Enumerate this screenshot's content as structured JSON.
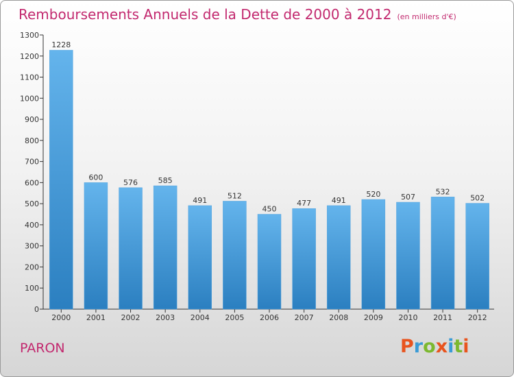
{
  "header": {
    "title": "Remboursements Annuels de la Dette de 2000 à 2012",
    "subtitle": "(en milliers d'€)"
  },
  "place": "PARON",
  "brand": {
    "text": "Proxiti",
    "letters": [
      {
        "ch": "P",
        "color": "#e8541e"
      },
      {
        "ch": "r",
        "color": "#3a9bd6"
      },
      {
        "ch": "o",
        "color": "#7cb82f"
      },
      {
        "ch": "x",
        "color": "#e8541e"
      },
      {
        "ch": "i",
        "color": "#3a9bd6"
      },
      {
        "ch": "t",
        "color": "#7cb82f"
      },
      {
        "ch": "i",
        "color": "#e8541e"
      }
    ]
  },
  "colors": {
    "bar_top": "#64b4ec",
    "bar_bottom": "#2b7fc0",
    "title": "#c2286e",
    "axis": "#333333"
  },
  "chart_data": {
    "type": "bar",
    "title": "Remboursements Annuels de la Dette de 2000 à 2012",
    "subtitle": "(en milliers d'€)",
    "categories": [
      "2000",
      "2001",
      "2002",
      "2003",
      "2004",
      "2005",
      "2006",
      "2007",
      "2008",
      "2009",
      "2010",
      "2011",
      "2012"
    ],
    "values": [
      1228,
      600,
      576,
      585,
      491,
      512,
      450,
      477,
      491,
      520,
      507,
      532,
      502
    ],
    "ylim": [
      0,
      1300
    ],
    "yticks": [
      0,
      100,
      200,
      300,
      400,
      500,
      600,
      700,
      800,
      900,
      1000,
      1100,
      1200,
      1300
    ],
    "grid": false,
    "legend": "none"
  }
}
